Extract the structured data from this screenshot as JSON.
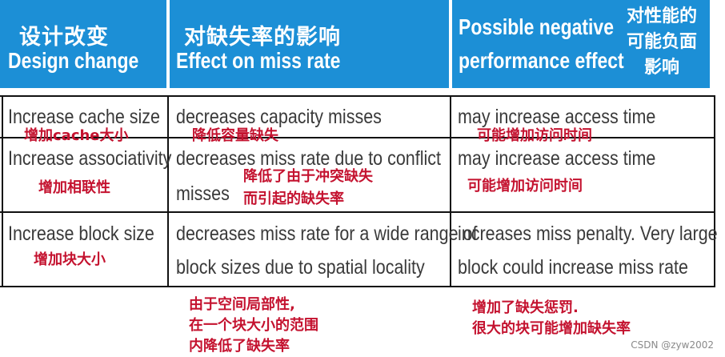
{
  "header": {
    "col1_zh": "设计改变",
    "col1_en": "Design change",
    "col2_zh": "对缺失率的影响",
    "col2_en": "Effect on miss rate",
    "col3_en_line1": "Possible negative",
    "col3_en_line2": "performance effect",
    "col3_zh_line1": "对性能的",
    "col3_zh_line2": "可能负面",
    "col3_zh_line3": "影响"
  },
  "rows": [
    {
      "design_en": "Increase cache size",
      "design_zh": "增加cache大小",
      "effect_en_line1": "decreases capacity misses",
      "effect_zh": "降低容量缺失",
      "negative_en_line1": "may increase access time",
      "negative_zh": "可能增加访问时间"
    },
    {
      "design_en": "Increase associativity",
      "design_zh": "增加相联性",
      "effect_en_line1": "decreases miss rate due to conflict",
      "effect_en_line2": "misses",
      "effect_zh_line1": "降低了由于冲突缺失",
      "effect_zh_line2": "而引起的缺失率",
      "negative_en_line1": "may increase access time",
      "negative_zh": "可能增加访问时间"
    },
    {
      "design_en": "Increase block size",
      "design_zh": "增加块大小",
      "effect_en_line1": "decreases miss rate for a wide range of",
      "effect_en_line2": "block sizes due to spatial locality",
      "effect_zh_line1": "由于空间局部性,",
      "effect_zh_line2": "在一个块大小的范围",
      "effect_zh_line3": "内降低了缺失率",
      "negative_en_line1": "increases miss penalty. Very large",
      "negative_en_line2": "block could increase miss rate",
      "negative_zh_line1": "增加了缺失惩罚.",
      "negative_zh_line2": "很大的块可能增加缺失率"
    }
  ],
  "watermark": "CSDN @zyw2002",
  "colors": {
    "header_bg": "#1c8fd6",
    "header_text": "#ffffff",
    "body_text": "#3a3a3a",
    "annotation_red": "#c4122f"
  }
}
